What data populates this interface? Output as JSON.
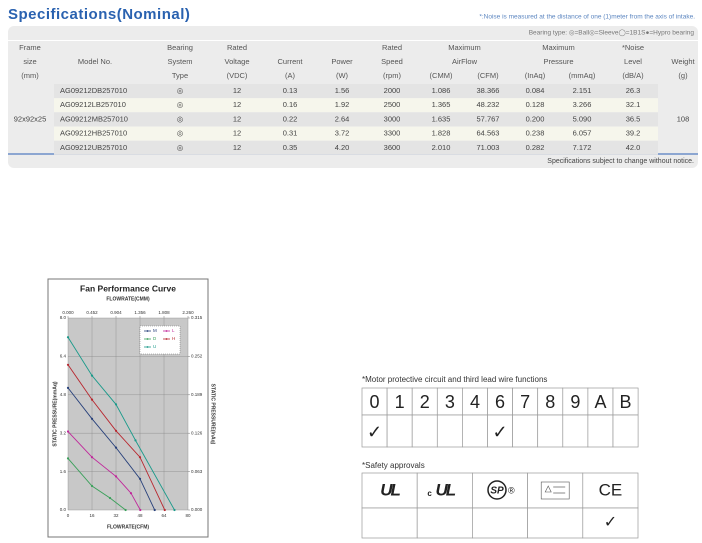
{
  "header": {
    "title": "Specifications(Nominal)",
    "note": "*:Noise is measured at the distance of one (1)meter from the axis of intake.",
    "bearing_legend": "Bearing type: ◎=Ball◎=Sleeve◯=1B1S●=Hypro bearing"
  },
  "table": {
    "columns": [
      [
        "Frame",
        "size",
        "(mm)"
      ],
      [
        "Model No."
      ],
      [
        "Bearing",
        "System",
        "Type"
      ],
      [
        "Rated",
        "Voltage",
        "(VDC)"
      ],
      [
        "Current",
        "(A)"
      ],
      [
        "Power",
        "(W)"
      ],
      [
        "Rated",
        "Speed",
        "(rpm)"
      ],
      [
        "(CMM)"
      ],
      [
        "(CFM)"
      ],
      [
        "(InAq)"
      ],
      [
        "(mmAq)"
      ],
      [
        "*Noise",
        "Level",
        "(dB/A)"
      ],
      [
        "Weight",
        "(g)"
      ]
    ],
    "groups": [
      [
        "Maximum",
        "AirFlow"
      ],
      [
        "Maximum",
        "Pressure"
      ]
    ],
    "frame_size": "92x92x25",
    "weight": "108",
    "rows": [
      [
        "AG09212DB257010",
        "◎",
        "12",
        "0.13",
        "1.56",
        "2000",
        "1.086",
        "38.366",
        "0.084",
        "2.151",
        "26.3"
      ],
      [
        "AG09212LB257010",
        "◎",
        "12",
        "0.16",
        "1.92",
        "2500",
        "1.365",
        "48.232",
        "0.128",
        "3.266",
        "32.1"
      ],
      [
        "AG09212MB257010",
        "◎",
        "12",
        "0.22",
        "2.64",
        "3000",
        "1.635",
        "57.767",
        "0.200",
        "5.090",
        "36.5"
      ],
      [
        "AG09212HB257010",
        "◎",
        "12",
        "0.31",
        "3.72",
        "3300",
        "1.828",
        "64.563",
        "0.238",
        "6.057",
        "39.2"
      ],
      [
        "AG09212UB257010",
        "◎",
        "12",
        "0.35",
        "4.20",
        "3600",
        "2.010",
        "71.003",
        "0.282",
        "7.172",
        "42.0"
      ]
    ],
    "footer": "Specifications subject to change without notice."
  },
  "fan_curve": {
    "type": "line",
    "title": "Fan Performance Curve",
    "x_label": "FLOWRATE(CFM)",
    "x2_label": "FLOWRATE(CMM)",
    "y_label": "STATIC PRESSURE(mmAq)",
    "y2_label": "STATIC PRESSURE(InAq)",
    "xlim": [
      0,
      80
    ],
    "xticks": [
      0,
      16,
      32,
      48,
      64,
      80
    ],
    "x2lim": [
      0,
      2.26
    ],
    "x2ticks": [
      {
        "value": 0,
        "label": "0.000"
      },
      0.452,
      0.904,
      1.356,
      1.808,
      {
        "value": 2.26,
        "label": "2.260"
      }
    ],
    "ylim": [
      0,
      8
    ],
    "yticks": [
      {
        "value": 0,
        "label": "0.0"
      },
      1.6,
      3.2,
      4.8,
      6.4,
      {
        "value": 8,
        "label": "8.0"
      }
    ],
    "y2lim": [
      0,
      0.315
    ],
    "y2ticks": [
      {
        "value": 0,
        "label": "0.000"
      },
      0.063,
      0.126,
      0.189,
      0.252,
      0.315
    ],
    "grid": true,
    "series": [
      {
        "name": "M",
        "color": "#27407a",
        "x": [
          0,
          16,
          32,
          48,
          57.8
        ],
        "values": [
          5.09,
          3.8,
          2.6,
          1.3,
          0
        ]
      },
      {
        "name": "L",
        "color": "#c0269a",
        "x": [
          0,
          16,
          32,
          42,
          48.2
        ],
        "values": [
          3.27,
          2.2,
          1.4,
          0.7,
          0
        ]
      },
      {
        "name": "D",
        "color": "#3aa05a",
        "x": [
          0,
          16,
          28,
          38.4
        ],
        "values": [
          2.15,
          1.0,
          0.5,
          0
        ]
      },
      {
        "name": "H",
        "color": "#b8262e",
        "x": [
          0,
          16,
          32,
          48,
          64.5
        ],
        "values": [
          6.05,
          4.6,
          3.3,
          2.2,
          0
        ]
      },
      {
        "name": "U",
        "color": "#1a9a8a",
        "x": [
          0,
          16,
          32,
          45,
          71
        ],
        "values": [
          7.2,
          5.6,
          4.4,
          2.9,
          0
        ]
      }
    ]
  },
  "motor": {
    "title": "*Motor protective circuit and third lead wire functions",
    "functions": [
      {
        "code": "0",
        "mark": "✓"
      },
      {
        "code": "1"
      },
      {
        "code": "2"
      },
      {
        "code": "3"
      },
      {
        "code": "4"
      },
      {
        "code": "6",
        "mark": "✓"
      },
      {
        "code": "7"
      },
      {
        "code": "8"
      },
      {
        "code": "9"
      },
      {
        "code": "A"
      },
      {
        "code": "B"
      }
    ]
  },
  "safety": {
    "title": "*Safety approvals",
    "approvals": [
      {
        "logo": "UL"
      },
      {
        "prefix": "c",
        "logo": "UL"
      },
      {
        "logo": "SP",
        "suffix": "®"
      },
      null,
      {
        "logo": "CE",
        "mark": "✓"
      }
    ]
  }
}
